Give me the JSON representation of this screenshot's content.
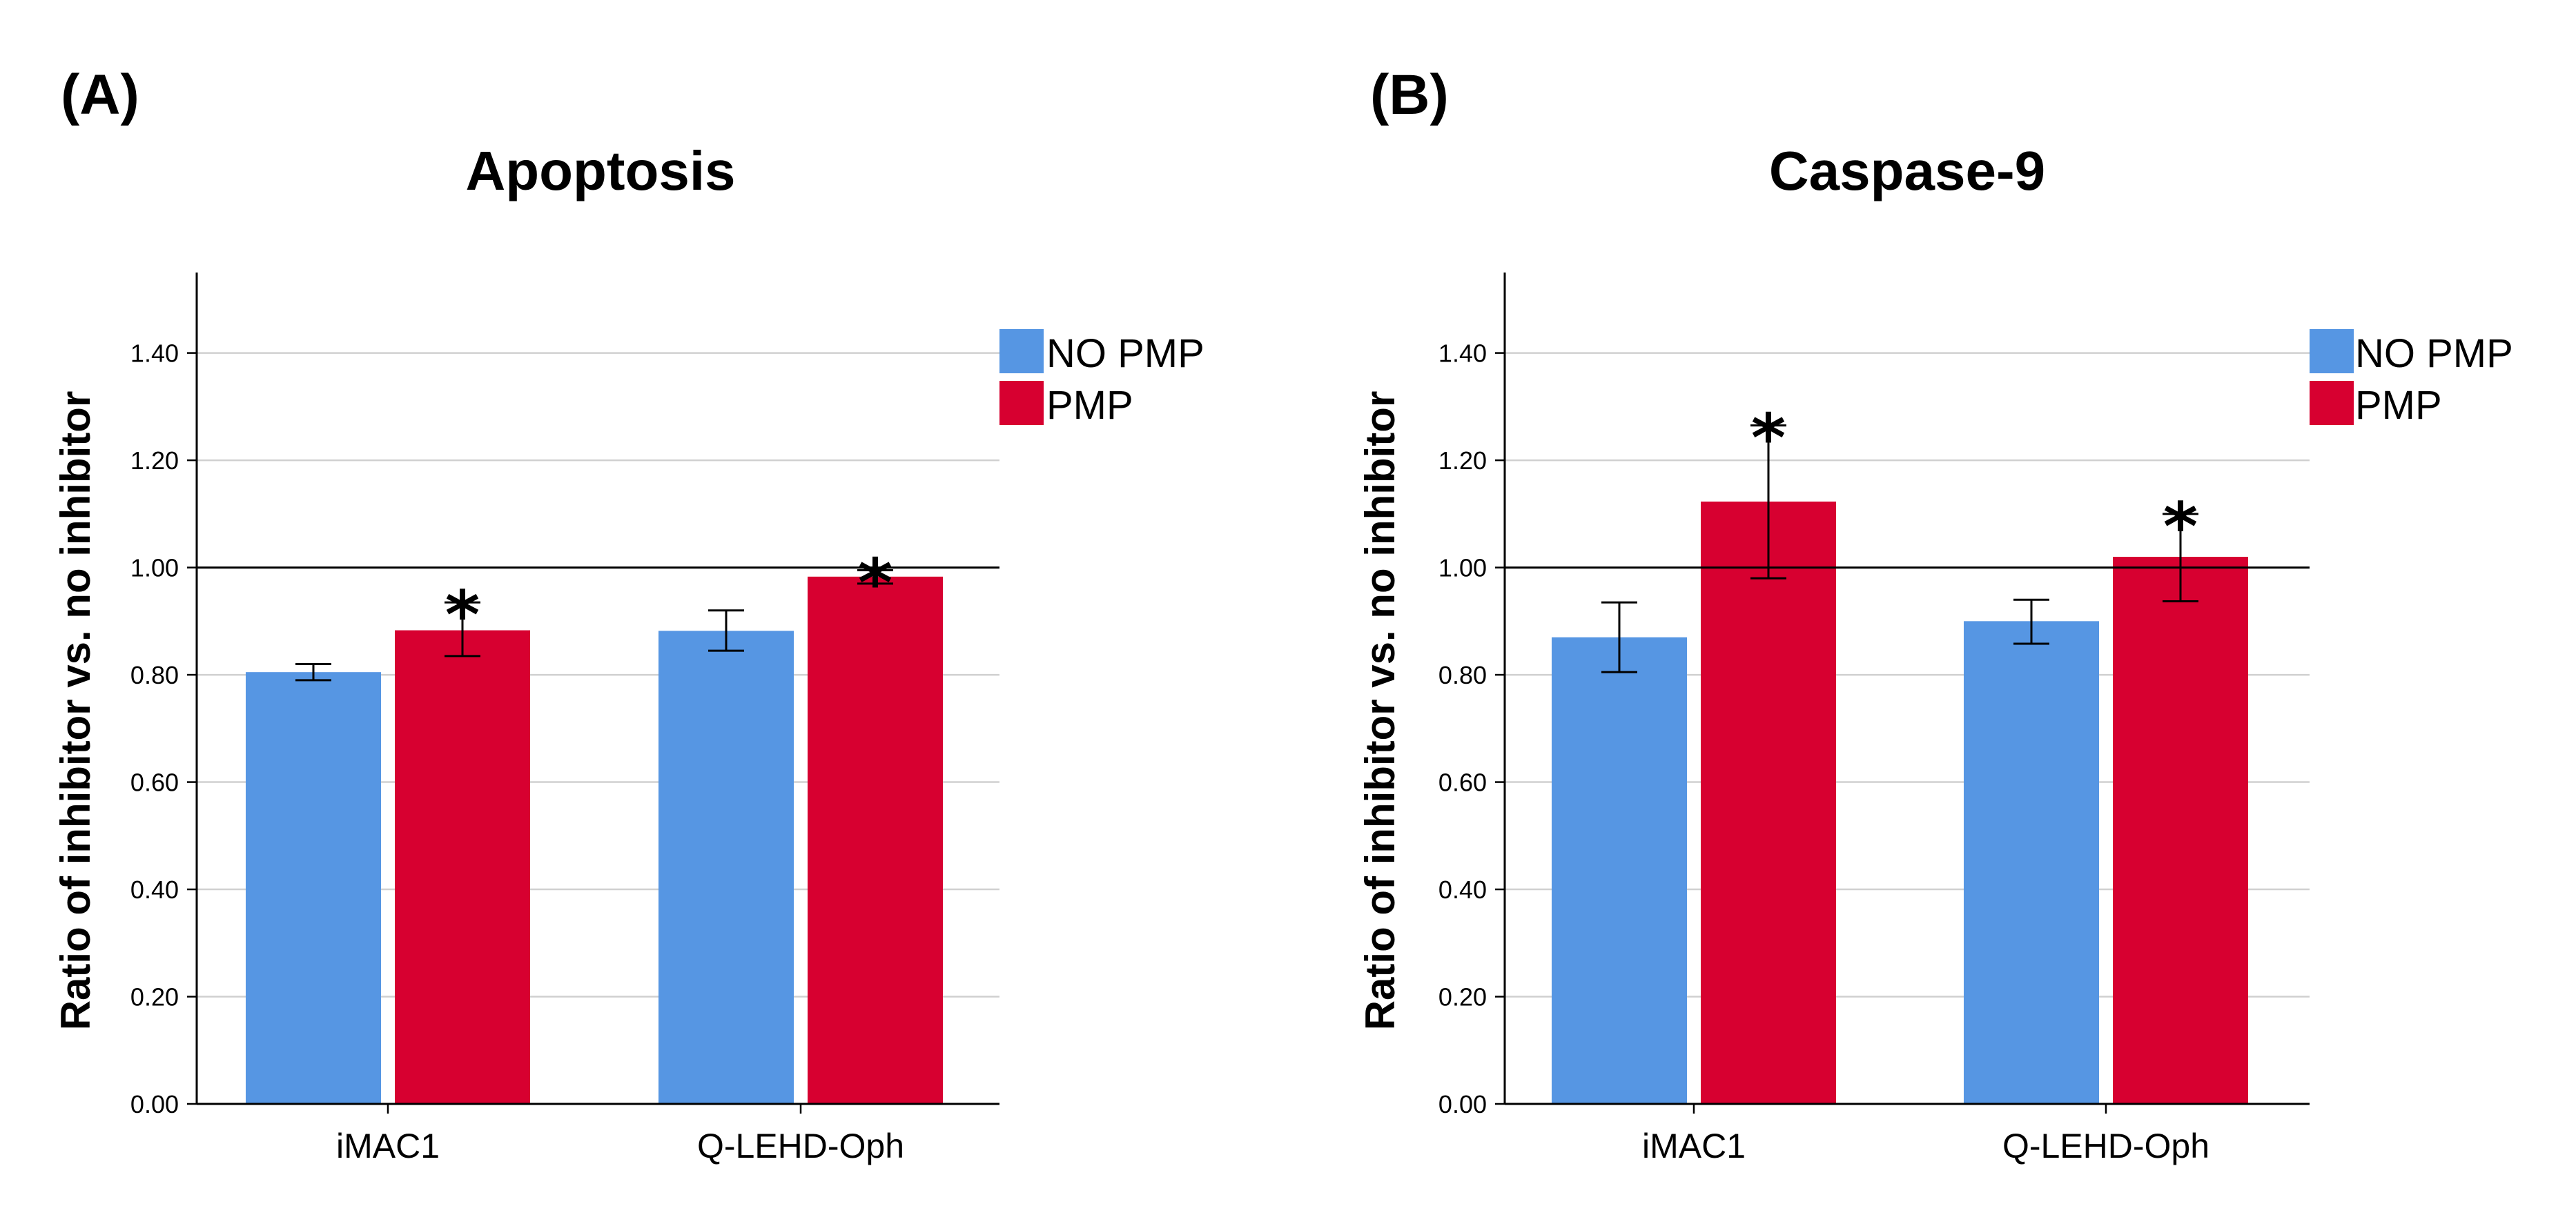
{
  "chart_data": [
    {
      "panel_label": "(A)",
      "type": "bar",
      "title": "Apoptosis",
      "ylabel": "Ratio of inhibitor vs. no inhibitor",
      "xlabel": "",
      "ylim": [
        0,
        1.55
      ],
      "yticks": [
        "0.00",
        "0.20",
        "0.40",
        "0.60",
        "0.80",
        "1.00",
        "1.20",
        "1.40"
      ],
      "reference_line": 1.0,
      "categories": [
        "iMAC1",
        "Q-LEHD-Oph"
      ],
      "series": [
        {
          "name": "NO PMP",
          "color": "#5696e3",
          "values": [
            0.805,
            0.882
          ],
          "err_low": [
            0.79,
            0.845
          ],
          "err_high": [
            0.82,
            0.92
          ],
          "significant": [
            false,
            false
          ]
        },
        {
          "name": "PMP",
          "color": "#d70030",
          "values": [
            0.883,
            0.983
          ],
          "err_low": [
            0.835,
            0.97
          ],
          "err_high": [
            0.935,
            0.995
          ],
          "significant": [
            true,
            true
          ]
        }
      ],
      "significance_marker": "*",
      "legend_position": "top-right"
    },
    {
      "panel_label": "(B)",
      "type": "bar",
      "title": "Caspase-9",
      "ylabel": "Ratio of inhibitor vs. no inhibitor",
      "xlabel": "",
      "ylim": [
        0,
        1.55
      ],
      "yticks": [
        "0.00",
        "0.20",
        "0.40",
        "0.60",
        "0.80",
        "1.00",
        "1.20",
        "1.40"
      ],
      "reference_line": 1.0,
      "categories": [
        "iMAC1",
        "Q-LEHD-Oph"
      ],
      "series": [
        {
          "name": "NO PMP",
          "color": "#5696e3",
          "values": [
            0.87,
            0.9
          ],
          "err_low": [
            0.805,
            0.858
          ],
          "err_high": [
            0.935,
            0.94
          ],
          "significant": [
            false,
            false
          ]
        },
        {
          "name": "PMP",
          "color": "#d70030",
          "values": [
            1.123,
            1.02
          ],
          "err_low": [
            0.98,
            0.937
          ],
          "err_high": [
            1.265,
            1.1
          ],
          "significant": [
            true,
            true
          ]
        }
      ],
      "significance_marker": "*",
      "legend_position": "top-right"
    }
  ]
}
